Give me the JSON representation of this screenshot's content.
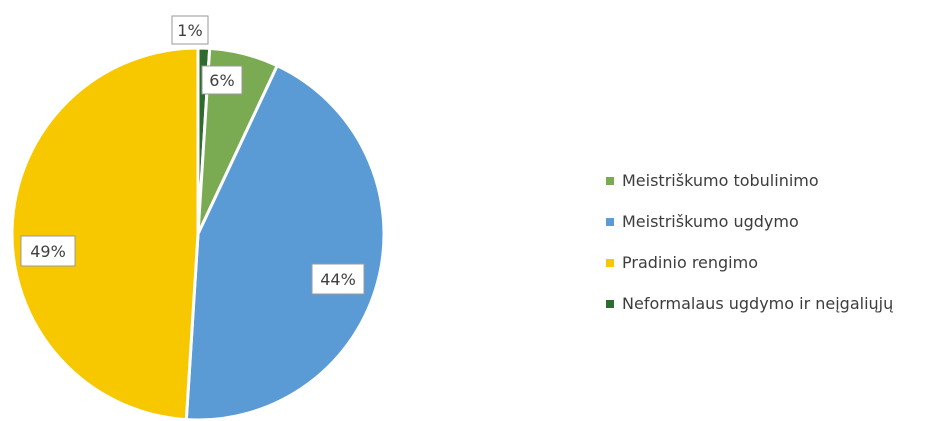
{
  "chart_data": {
    "type": "pie",
    "title": "",
    "slices": [
      {
        "name": "Neformalaus ugdymo ir neįgaliųjų",
        "value": 1,
        "label": "1%",
        "color": "#2e6b2e"
      },
      {
        "name": "Meistriškumo tobulinimo",
        "value": 6,
        "label": "6%",
        "color": "#7aab52"
      },
      {
        "name": "Meistriškumo ugdymo",
        "value": 44,
        "label": "44%",
        "color": "#5b9bd5"
      },
      {
        "name": "Pradinio rengimo",
        "value": 49,
        "label": "49%",
        "color": "#f7c800"
      }
    ],
    "legend": {
      "placement": "right",
      "items": [
        {
          "label": "Meistriškumo tobulinimo",
          "color": "#7aab52"
        },
        {
          "label": "Meistriškumo ugdymo",
          "color": "#5b9bd5"
        },
        {
          "label": "Pradinio rengimo",
          "color": "#f7c800"
        },
        {
          "label": "Neformalaus ugdymo ir neįgaliųjų",
          "color": "#2e6b2e"
        }
      ]
    }
  }
}
